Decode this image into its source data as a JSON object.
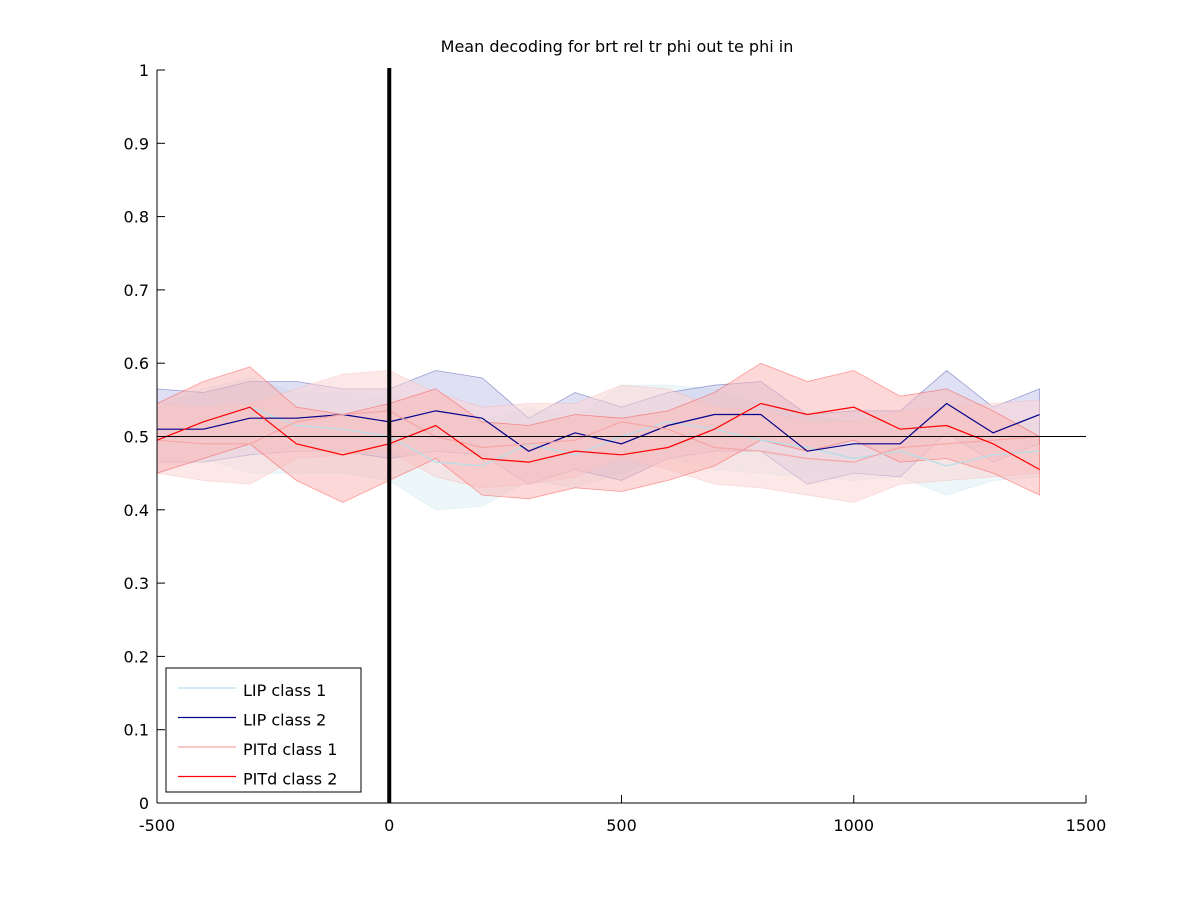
{
  "chart_data": {
    "type": "line",
    "title": "Mean decoding for brt rel tr phi out te phi in",
    "xlabel": "",
    "ylabel": "",
    "xlim": [
      -500,
      1500
    ],
    "ylim": [
      0,
      1
    ],
    "xticks": [
      -500,
      0,
      500,
      1000,
      1500
    ],
    "xtick_labels": [
      "-500",
      "0",
      "500",
      "1000",
      "1500"
    ],
    "yticks": [
      0,
      0.1,
      0.2,
      0.3,
      0.4,
      0.5,
      0.6,
      0.7,
      0.8,
      0.9,
      1
    ],
    "ytick_labels": [
      "0",
      "0.1",
      "0.2",
      "0.3",
      "0.4",
      "0.5",
      "0.6",
      "0.7",
      "0.8",
      "0.9",
      "1"
    ],
    "grid": false,
    "legend_position": "bottom-left",
    "reference_lines": {
      "horizontal_y": 0.5,
      "vertical_x": 0
    },
    "x": [
      -500,
      -400,
      -300,
      -200,
      -100,
      0,
      100,
      200,
      300,
      400,
      500,
      600,
      700,
      800,
      900,
      1000,
      1100,
      1200,
      1300,
      1400
    ],
    "series": [
      {
        "name": "LIP class 1",
        "color": "#b3e0ea",
        "fill": "#dff0f4",
        "values": [
          0.495,
          0.52,
          0.54,
          0.515,
          0.51,
          0.5,
          0.465,
          0.46,
          0.49,
          0.475,
          0.5,
          0.52,
          0.51,
          0.495,
          0.485,
          0.47,
          0.48,
          0.46,
          0.475,
          0.48
        ],
        "lower": [
          0.45,
          0.47,
          0.45,
          0.45,
          0.45,
          0.44,
          0.4,
          0.405,
          0.44,
          0.43,
          0.45,
          0.47,
          0.455,
          0.45,
          0.445,
          0.44,
          0.445,
          0.42,
          0.44,
          0.445
        ],
        "upper": [
          0.54,
          0.565,
          0.58,
          0.56,
          0.56,
          0.555,
          0.53,
          0.52,
          0.54,
          0.525,
          0.57,
          0.57,
          0.565,
          0.545,
          0.53,
          0.52,
          0.525,
          0.505,
          0.515,
          0.52
        ]
      },
      {
        "name": "LIP class 2",
        "color": "#00008b",
        "fill": "#c4c6ea",
        "values": [
          0.51,
          0.51,
          0.525,
          0.525,
          0.53,
          0.52,
          0.535,
          0.525,
          0.48,
          0.505,
          0.49,
          0.515,
          0.53,
          0.53,
          0.48,
          0.49,
          0.49,
          0.545,
          0.505,
          0.53
        ],
        "lower": [
          0.465,
          0.465,
          0.475,
          0.48,
          0.48,
          0.47,
          0.48,
          0.475,
          0.435,
          0.455,
          0.44,
          0.47,
          0.48,
          0.48,
          0.435,
          0.45,
          0.445,
          0.505,
          0.465,
          0.49
        ],
        "upper": [
          0.565,
          0.56,
          0.575,
          0.575,
          0.565,
          0.565,
          0.59,
          0.58,
          0.525,
          0.56,
          0.54,
          0.56,
          0.57,
          0.575,
          0.53,
          0.535,
          0.535,
          0.59,
          0.54,
          0.565
        ]
      },
      {
        "name": "PITd class 1",
        "color": "#f7a5a5",
        "fill": "#fbd6d6",
        "values": [
          0.495,
          0.49,
          0.49,
          0.52,
          0.53,
          0.535,
          0.5,
          0.485,
          0.49,
          0.495,
          0.52,
          0.51,
          0.485,
          0.48,
          0.47,
          0.465,
          0.485,
          0.49,
          0.495,
          0.5
        ],
        "lower": [
          0.45,
          0.44,
          0.435,
          0.47,
          0.475,
          0.48,
          0.445,
          0.43,
          0.435,
          0.445,
          0.47,
          0.455,
          0.435,
          0.43,
          0.42,
          0.41,
          0.435,
          0.44,
          0.445,
          0.45
        ],
        "upper": [
          0.545,
          0.54,
          0.545,
          0.565,
          0.585,
          0.59,
          0.56,
          0.54,
          0.545,
          0.545,
          0.57,
          0.565,
          0.54,
          0.535,
          0.52,
          0.52,
          0.535,
          0.54,
          0.545,
          0.55
        ]
      },
      {
        "name": "PITd class 2",
        "color": "#ff0000",
        "fill": "#f9b8b8",
        "values": [
          0.495,
          0.52,
          0.54,
          0.49,
          0.475,
          0.49,
          0.515,
          0.47,
          0.465,
          0.48,
          0.475,
          0.485,
          0.51,
          0.545,
          0.53,
          0.54,
          0.51,
          0.515,
          0.49,
          0.455
        ],
        "lower": [
          0.45,
          0.47,
          0.49,
          0.44,
          0.41,
          0.44,
          0.47,
          0.42,
          0.415,
          0.43,
          0.425,
          0.44,
          0.46,
          0.495,
          0.48,
          0.495,
          0.465,
          0.47,
          0.45,
          0.42
        ],
        "upper": [
          0.545,
          0.575,
          0.595,
          0.54,
          0.53,
          0.545,
          0.565,
          0.52,
          0.515,
          0.53,
          0.525,
          0.535,
          0.56,
          0.6,
          0.575,
          0.59,
          0.555,
          0.565,
          0.535,
          0.5
        ]
      }
    ]
  }
}
